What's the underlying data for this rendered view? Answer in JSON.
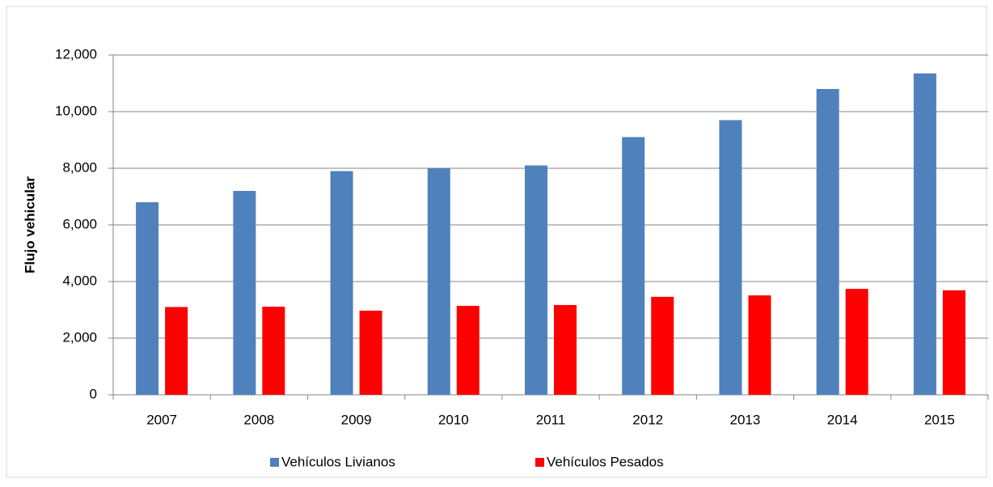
{
  "chart_data": {
    "type": "bar",
    "y_label": "Flujo vehicular",
    "categories": [
      "2007",
      "2008",
      "2009",
      "2010",
      "2011",
      "2012",
      "2013",
      "2014",
      "2015"
    ],
    "series": [
      {
        "name": "Vehículos Livianos",
        "color": "#4f81bd",
        "values": [
          6800,
          7200,
          7900,
          8000,
          8100,
          9100,
          9700,
          10800,
          11350
        ]
      },
      {
        "name": "Vehículos Pesados",
        "color": "#ff0000",
        "values": [
          3100,
          3110,
          2970,
          3140,
          3170,
          3460,
          3510,
          3740,
          3690
        ]
      }
    ],
    "ylim": [
      0,
      12000
    ],
    "yticks": [
      0,
      {
        "value": 2000,
        "label": "2,000"
      },
      {
        "value": 4000,
        "label": "4,000"
      },
      {
        "value": 6000,
        "label": "6,000"
      },
      {
        "value": 8000,
        "label": "8,000"
      },
      {
        "value": 10000,
        "label": "10,000"
      },
      {
        "value": 12000,
        "label": "12,000"
      }
    ],
    "grid": true,
    "legend": "bottom"
  }
}
